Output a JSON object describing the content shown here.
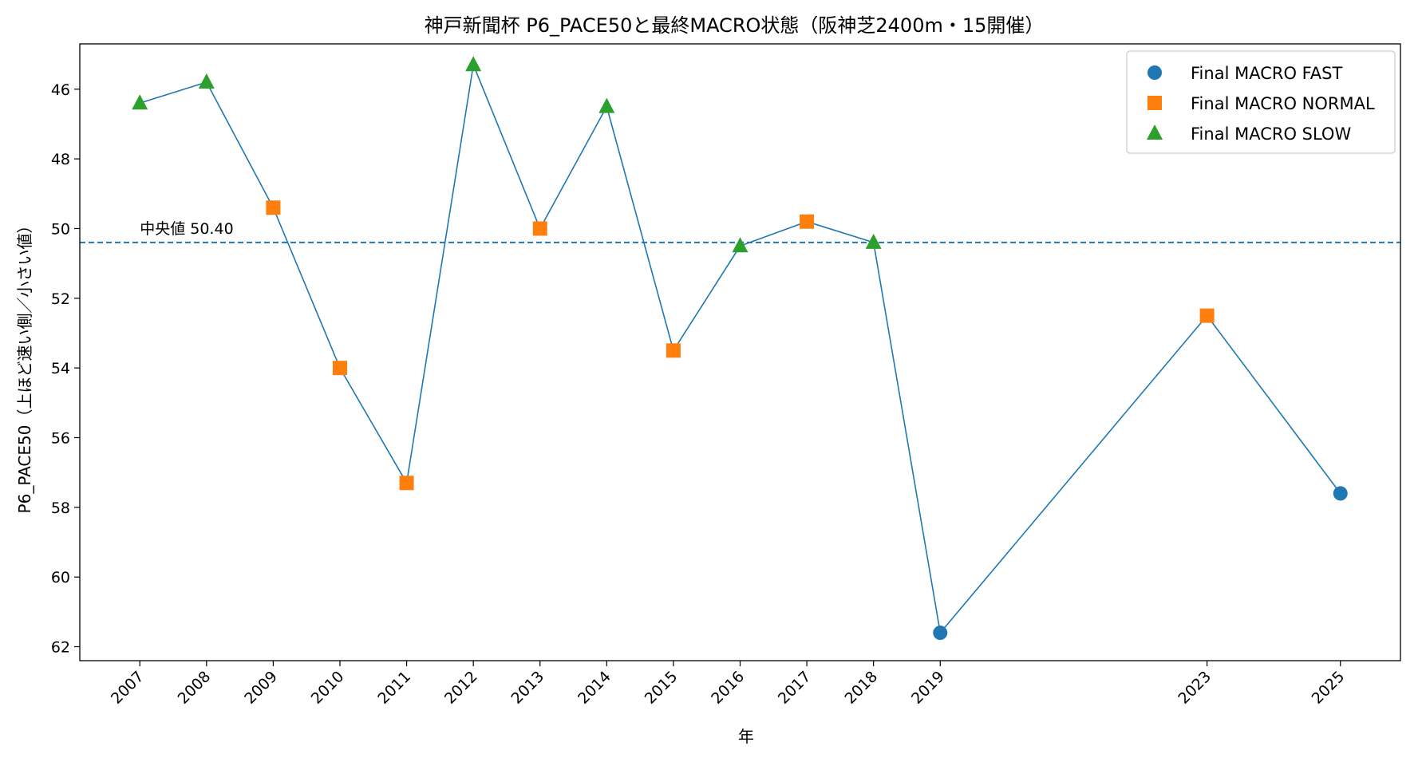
{
  "chart_data": {
    "type": "line",
    "title": "神戸新聞杯 P6_PACE50と最終MACRO状態（阪神芝2400m・15開催）",
    "xlabel": "年",
    "ylabel": "P6_PACE50（上ほど速い側／小さい値）",
    "y_inverted": true,
    "ylim": [
      44.7,
      62.4
    ],
    "xlim": [
      2006.1,
      2025.9
    ],
    "yticks": [
      46,
      48,
      50,
      52,
      54,
      56,
      58,
      60,
      62
    ],
    "xticks": [
      2007,
      2008,
      2009,
      2010,
      2011,
      2012,
      2013,
      2014,
      2015,
      2016,
      2017,
      2018,
      2019,
      2023,
      2025
    ],
    "x_tick_rotation": 45,
    "line_color": "#1f77b4",
    "grid": false,
    "legend_position": "top-right",
    "median": {
      "value": 50.4,
      "label": "中央値 50.40",
      "color": "#1f77b4",
      "style": "dashed"
    },
    "points": [
      {
        "x": 2007,
        "y": 46.4,
        "state": "SLOW"
      },
      {
        "x": 2008,
        "y": 45.8,
        "state": "SLOW"
      },
      {
        "x": 2009,
        "y": 49.4,
        "state": "NORMAL"
      },
      {
        "x": 2010,
        "y": 54.0,
        "state": "NORMAL"
      },
      {
        "x": 2011,
        "y": 57.3,
        "state": "NORMAL"
      },
      {
        "x": 2012,
        "y": 45.3,
        "state": "SLOW"
      },
      {
        "x": 2013,
        "y": 50.0,
        "state": "NORMAL"
      },
      {
        "x": 2014,
        "y": 46.5,
        "state": "SLOW"
      },
      {
        "x": 2015,
        "y": 53.5,
        "state": "NORMAL"
      },
      {
        "x": 2016,
        "y": 50.5,
        "state": "SLOW"
      },
      {
        "x": 2017,
        "y": 49.8,
        "state": "NORMAL"
      },
      {
        "x": 2018,
        "y": 50.4,
        "state": "SLOW"
      },
      {
        "x": 2019,
        "y": 61.6,
        "state": "FAST"
      },
      {
        "x": 2023,
        "y": 52.5,
        "state": "NORMAL"
      },
      {
        "x": 2025,
        "y": 57.6,
        "state": "FAST"
      }
    ],
    "series": [
      {
        "name": "Final MACRO FAST",
        "state": "FAST",
        "marker": "circle",
        "color": "#1f77b4"
      },
      {
        "name": "Final MACRO NORMAL",
        "state": "NORMAL",
        "marker": "square",
        "color": "#ff7f0e"
      },
      {
        "name": "Final MACRO SLOW",
        "state": "SLOW",
        "marker": "triangle",
        "color": "#2ca02c"
      }
    ]
  }
}
